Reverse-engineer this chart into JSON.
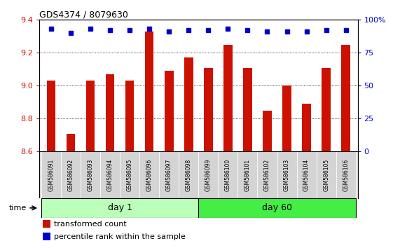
{
  "title": "GDS4374 / 8079630",
  "samples": [
    "GSM586091",
    "GSM586092",
    "GSM586093",
    "GSM586094",
    "GSM586095",
    "GSM586096",
    "GSM586097",
    "GSM586098",
    "GSM586099",
    "GSM586100",
    "GSM586101",
    "GSM586102",
    "GSM586103",
    "GSM586104",
    "GSM586105",
    "GSM586106"
  ],
  "bar_values": [
    9.03,
    8.71,
    9.03,
    9.07,
    9.03,
    9.33,
    9.09,
    9.17,
    9.11,
    9.25,
    9.11,
    8.85,
    9.0,
    8.89,
    9.11,
    9.25
  ],
  "percentile_values": [
    93,
    90,
    93,
    92,
    92,
    93,
    91,
    92,
    92,
    93,
    92,
    91,
    91,
    91,
    92,
    92
  ],
  "bar_color": "#cc1100",
  "percentile_color": "#0000cc",
  "ylim": [
    8.6,
    9.4
  ],
  "yticks": [
    8.6,
    8.8,
    9.0,
    9.2,
    9.4
  ],
  "right_ylim": [
    0,
    100
  ],
  "right_yticks": [
    0,
    25,
    50,
    75,
    100
  ],
  "right_yticklabels": [
    "0",
    "25",
    "50",
    "75",
    "100%"
  ],
  "day1_samples": 8,
  "day60_samples": 8,
  "day1_label": "day 1",
  "day60_label": "day 60",
  "day1_color": "#bbffbb",
  "day60_color": "#44ee44",
  "legend_bar_label": "transformed count",
  "legend_pct_label": "percentile rank within the sample",
  "time_label": "time",
  "bar_width": 0.45
}
